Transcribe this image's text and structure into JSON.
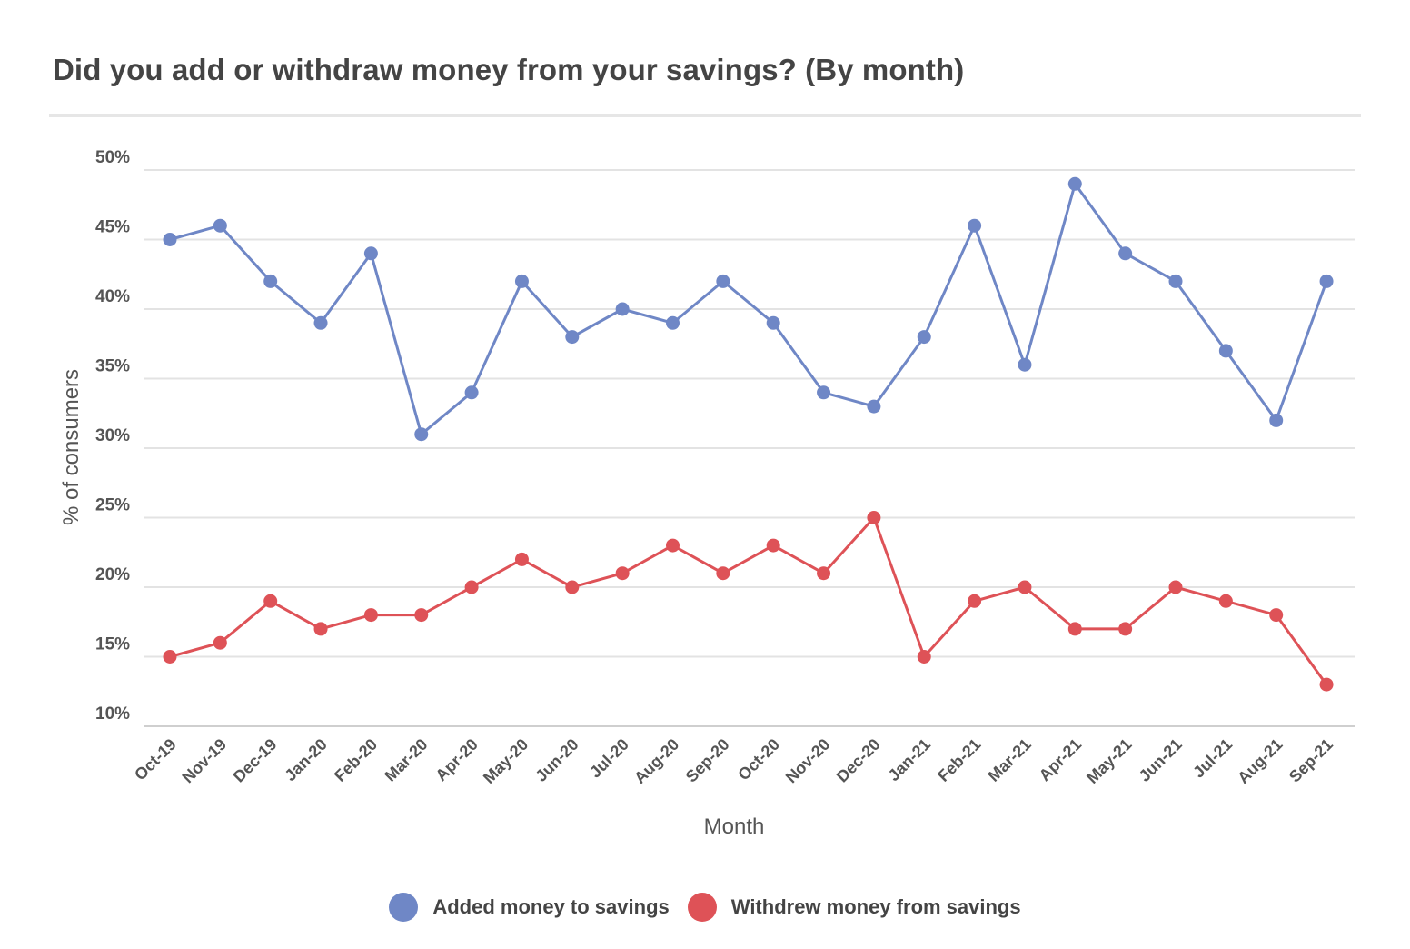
{
  "chart_data": {
    "type": "line",
    "title": "Did you add or withdraw money from your savings? (By month)",
    "xlabel": "Month",
    "ylabel": "% of consumers",
    "ylim": [
      10,
      50
    ],
    "yticks": [
      "10%",
      "15%",
      "20%",
      "25%",
      "30%",
      "35%",
      "40%",
      "45%",
      "50%"
    ],
    "grid": true,
    "legend_position": "bottom-center",
    "categories": [
      "Oct-19",
      "Nov-19",
      "Dec-19",
      "Jan-20",
      "Feb-20",
      "Mar-20",
      "Apr-20",
      "May-20",
      "Jun-20",
      "Jul-20",
      "Aug-20",
      "Sep-20",
      "Oct-20",
      "Nov-20",
      "Dec-20",
      "Jan-21",
      "Feb-21",
      "Mar-21",
      "Apr-21",
      "May-21",
      "Jun-21",
      "Jul-21",
      "Aug-21",
      "Sep-21"
    ],
    "series": [
      {
        "name": "Added money to savings",
        "color": "#6f87c6",
        "values": [
          45,
          46,
          42,
          39,
          44,
          31,
          34,
          42,
          38,
          40,
          39,
          42,
          39,
          34,
          33,
          38,
          46,
          36,
          49,
          44,
          42,
          37,
          32,
          42
        ]
      },
      {
        "name": "Withdrew money from savings",
        "color": "#de5257",
        "values": [
          15,
          16,
          19,
          17,
          18,
          18,
          20,
          22,
          20,
          21,
          23,
          21,
          23,
          21,
          25,
          15,
          19,
          20,
          17,
          17,
          20,
          19,
          18,
          13
        ]
      }
    ]
  }
}
